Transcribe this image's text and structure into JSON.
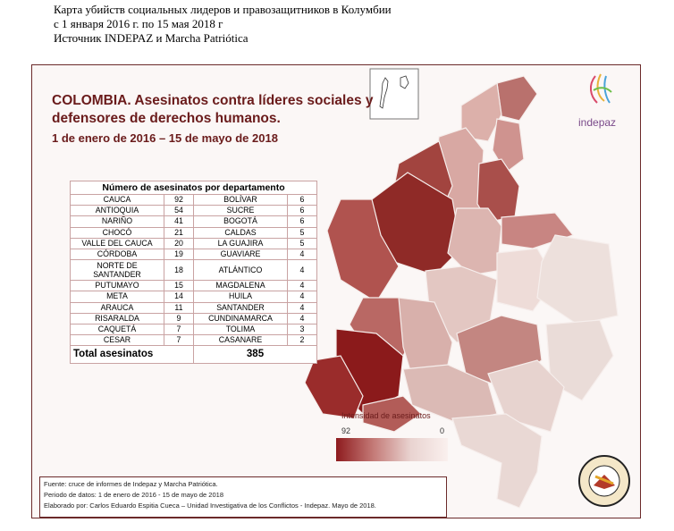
{
  "caption": {
    "line1": "Карта убийств социальных лидеров и правозащитников в Колумбии",
    "line2": "с 1 января 2016 г. по 15 мая 2018 г",
    "line3": "Источник INDEPAZ и Marcha Patriótica"
  },
  "map": {
    "title_line1": "COLOMBIA. Asesinatos contra líderes sociales y",
    "title_line2": "defensores de derechos humanos.",
    "subtitle": "1 de enero  de 2016 – 15 de mayo de 2018",
    "logo_text": "indepaz",
    "colors": {
      "max": "#8e1b1e",
      "min": "#f3e4e1",
      "frame": "#6b2a2a"
    }
  },
  "table": {
    "header": "Número de asesinatos por departamento",
    "rows": [
      {
        "dept_a": "CAUCA",
        "num_a": "92",
        "dept_b": "BOLÍVAR",
        "num_b": "6"
      },
      {
        "dept_a": "ANTIOQUIA",
        "num_a": "54",
        "dept_b": "SUCRE",
        "num_b": "6"
      },
      {
        "dept_a": "NARIÑO",
        "num_a": "41",
        "dept_b": "BOGOTÁ",
        "num_b": "6"
      },
      {
        "dept_a": "CHOCÓ",
        "num_a": "21",
        "dept_b": "CALDAS",
        "num_b": "5"
      },
      {
        "dept_a": "VALLE DEL CAUCA",
        "num_a": "20",
        "dept_b": "LA GUAJIRA",
        "num_b": "5"
      },
      {
        "dept_a": "CÓRDOBA",
        "num_a": "19",
        "dept_b": "GUAVIARE",
        "num_b": "4"
      },
      {
        "dept_a_line1": "NORTE DE",
        "dept_a_line2": "SANTANDER",
        "num_a": "18",
        "dept_b": "ATLÁNTICO",
        "num_b": "4"
      },
      {
        "dept_a": "PUTUMAYO",
        "num_a": "15",
        "dept_b": "MAGDALENA",
        "num_b": "4"
      },
      {
        "dept_a": "META",
        "num_a": "14",
        "dept_b": "HUILA",
        "num_b": "4"
      },
      {
        "dept_a": "ARAUCA",
        "num_a": "11",
        "dept_b": "SANTANDER",
        "num_b": "4"
      },
      {
        "dept_a": "RISARALDA",
        "num_a": "9",
        "dept_b": "CUNDINAMARCA",
        "num_b": "4"
      },
      {
        "dept_a": "CAQUETÁ",
        "num_a": "7",
        "dept_b": "TOLIMA",
        "num_b": "3"
      },
      {
        "dept_a": "CESAR",
        "num_a": "7",
        "dept_b": "CASANARE",
        "num_b": "2"
      }
    ],
    "total_label": "Total asesinatos",
    "total_value": "385"
  },
  "legend": {
    "title": "Intensidad de asesinatos",
    "max": "92",
    "min": "0"
  },
  "footer": {
    "line1": "Fuente: cruce de informes de Indepaz y Marcha Patriótica.",
    "line2": "Periodo de datos: 1 de enero de 2016  -  15 de mayo de 2018",
    "line3": "Elaborado por: Carlos Eduardo Espitia Cueca – Unidad Investigativa de los Conflictos - Indepaz. Mayo de 2018."
  },
  "seal": {
    "top_text": "MARCHA PATRIÓTICA",
    "bottom_text": "NUEVO CAMBIO · NUEVA PATRIA"
  }
}
